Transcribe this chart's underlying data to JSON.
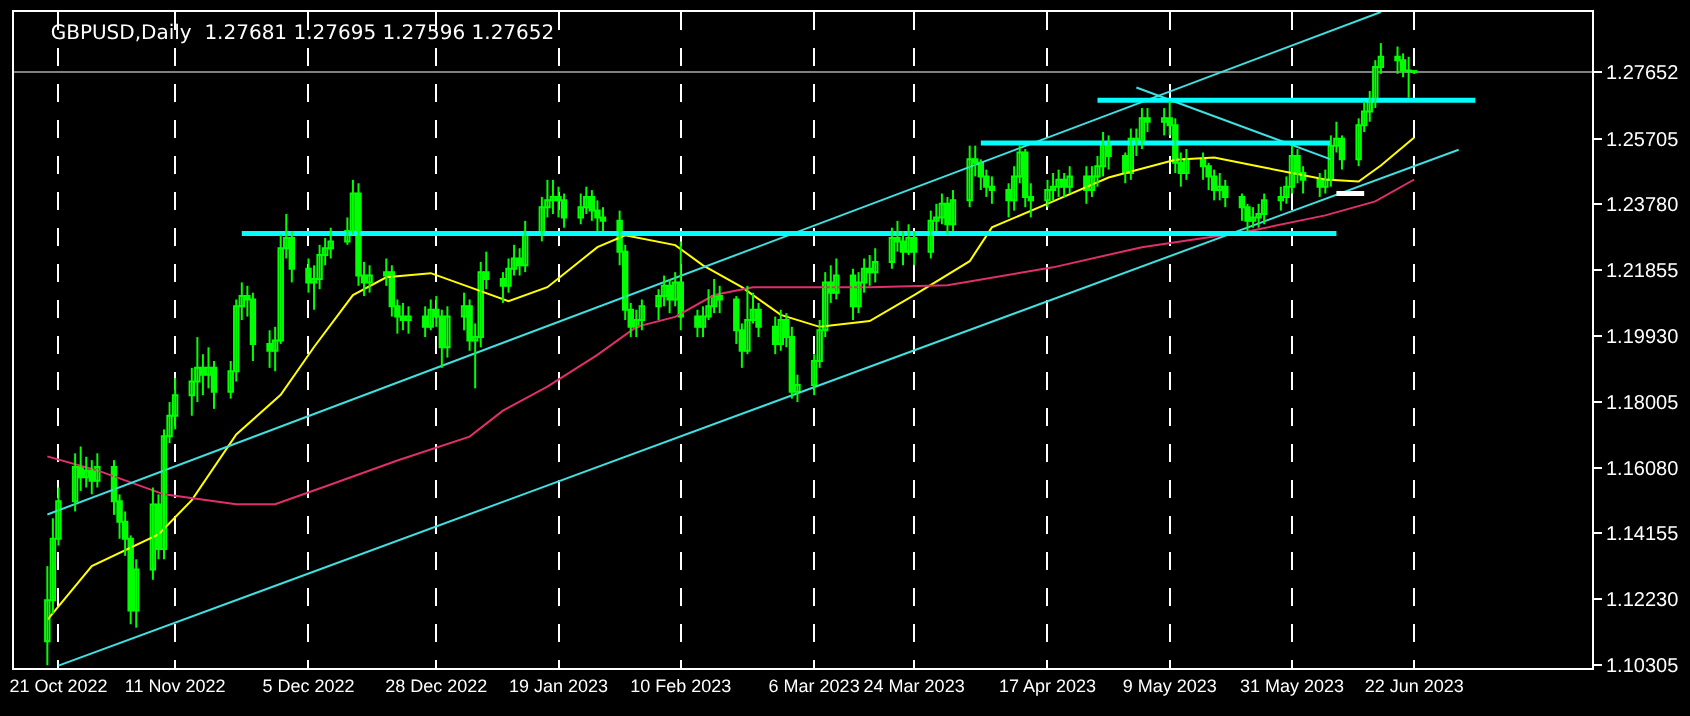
{
  "chart_data": {
    "type": "candlestick",
    "title": "GBPUSD,Daily  1.27681 1.27695 1.27596 1.27652",
    "xlim": [
      "2022-10-13",
      "2023-07-24"
    ],
    "xticks": [
      {
        "value": "2022-10-21",
        "label": "21 Oct 2022"
      },
      {
        "value": "2022-11-11",
        "label": "11 Nov 2022"
      },
      {
        "value": "2022-12-05",
        "label": "5 Dec 2022"
      },
      {
        "value": "2022-12-28",
        "label": "28 Dec 2022"
      },
      {
        "value": "2023-01-19",
        "label": "19 Jan 2023"
      },
      {
        "value": "2023-02-10",
        "label": "10 Feb 2023"
      },
      {
        "value": "2023-03-06",
        "label": "6 Mar 2023"
      },
      {
        "value": "2023-03-24",
        "label": "24 Mar 2023"
      },
      {
        "value": "2023-04-17",
        "label": "17 Apr 2023"
      },
      {
        "value": "2023-05-09",
        "label": "9 May 2023"
      },
      {
        "value": "2023-05-31",
        "label": "31 May 2023"
      },
      {
        "value": "2023-06-22",
        "label": "22 Jun 2023"
      }
    ],
    "ylim": [
      1.1022,
      1.2941
    ],
    "yticks": [
      {
        "value": 1.10305,
        "label": "1.10305"
      },
      {
        "value": 1.1223,
        "label": "1.12230"
      },
      {
        "value": 1.14155,
        "label": "1.14155"
      },
      {
        "value": 1.1608,
        "label": "1.16080"
      },
      {
        "value": 1.18005,
        "label": "1.18005"
      },
      {
        "value": 1.1993,
        "label": "1.19930"
      },
      {
        "value": 1.21855,
        "label": "1.21855"
      },
      {
        "value": 1.2378,
        "label": "1.23780"
      },
      {
        "value": 1.25705,
        "label": "1.25705"
      },
      {
        "value": 1.27652,
        "label": "1.27652"
      }
    ],
    "grid": "x",
    "ref_lines": [
      {
        "axis": "y",
        "value": 1.27652,
        "color": "#808080"
      }
    ],
    "series": [
      {
        "color": "#00ff00",
        "x": [
          "2022-10-19",
          "2022-10-20",
          "2022-10-21",
          "2022-10-24",
          "2022-10-25",
          "2022-10-26",
          "2022-10-27",
          "2022-10-28",
          "2022-10-31",
          "2022-11-01",
          "2022-11-02",
          "2022-11-03",
          "2022-11-04",
          "2022-11-07",
          "2022-11-08",
          "2022-11-09",
          "2022-11-10",
          "2022-11-11",
          "2022-11-14",
          "2022-11-15",
          "2022-11-16",
          "2022-11-17",
          "2022-11-18",
          "2022-11-21",
          "2022-11-22",
          "2022-11-23",
          "2022-11-24",
          "2022-11-25",
          "2022-11-28",
          "2022-11-29",
          "2022-11-30",
          "2022-12-01",
          "2022-12-02",
          "2022-12-05",
          "2022-12-06",
          "2022-12-07",
          "2022-12-08",
          "2022-12-09",
          "2022-12-12",
          "2022-12-13",
          "2022-12-14",
          "2022-12-15",
          "2022-12-16",
          "2022-12-19",
          "2022-12-20",
          "2022-12-21",
          "2022-12-22",
          "2022-12-23",
          "2022-12-26",
          "2022-12-27",
          "2022-12-28",
          "2022-12-29",
          "2022-12-30",
          "2023-01-02",
          "2023-01-03",
          "2023-01-04",
          "2023-01-05",
          "2023-01-06",
          "2023-01-09",
          "2023-01-10",
          "2023-01-11",
          "2023-01-12",
          "2023-01-13",
          "2023-01-16",
          "2023-01-17",
          "2023-01-18",
          "2023-01-19",
          "2023-01-20",
          "2023-01-23",
          "2023-01-24",
          "2023-01-25",
          "2023-01-26",
          "2023-01-27",
          "2023-01-30",
          "2023-01-31",
          "2023-02-01",
          "2023-02-02",
          "2023-02-03",
          "2023-02-06",
          "2023-02-07",
          "2023-02-08",
          "2023-02-09",
          "2023-02-10",
          "2023-02-13",
          "2023-02-14",
          "2023-02-15",
          "2023-02-16",
          "2023-02-17",
          "2023-02-20",
          "2023-02-21",
          "2023-02-22",
          "2023-02-23",
          "2023-02-24",
          "2023-02-27",
          "2023-02-28",
          "2023-03-01",
          "2023-03-02",
          "2023-03-03",
          "2023-03-06",
          "2023-03-07",
          "2023-03-08",
          "2023-03-09",
          "2023-03-10",
          "2023-03-13",
          "2023-03-14",
          "2023-03-15",
          "2023-03-16",
          "2023-03-17",
          "2023-03-20",
          "2023-03-21",
          "2023-03-22",
          "2023-03-23",
          "2023-03-24",
          "2023-03-27",
          "2023-03-28",
          "2023-03-29",
          "2023-03-30",
          "2023-03-31",
          "2023-04-03",
          "2023-04-04",
          "2023-04-05",
          "2023-04-06",
          "2023-04-07",
          "2023-04-10",
          "2023-04-11",
          "2023-04-12",
          "2023-04-13",
          "2023-04-14",
          "2023-04-17",
          "2023-04-18",
          "2023-04-19",
          "2023-04-20",
          "2023-04-21",
          "2023-04-24",
          "2023-04-25",
          "2023-04-26",
          "2023-04-27",
          "2023-04-28",
          "2023-05-01",
          "2023-05-02",
          "2023-05-03",
          "2023-05-04",
          "2023-05-05",
          "2023-05-08",
          "2023-05-09",
          "2023-05-10",
          "2023-05-11",
          "2023-05-12",
          "2023-05-15",
          "2023-05-16",
          "2023-05-17",
          "2023-05-18",
          "2023-05-19",
          "2023-05-22",
          "2023-05-23",
          "2023-05-24",
          "2023-05-25",
          "2023-05-26",
          "2023-05-29",
          "2023-05-30",
          "2023-05-31",
          "2023-06-01",
          "2023-06-02",
          "2023-06-05",
          "2023-06-06",
          "2023-06-07",
          "2023-06-08",
          "2023-06-09",
          "2023-06-12",
          "2023-06-13",
          "2023-06-14",
          "2023-06-15",
          "2023-06-16",
          "2023-06-19",
          "2023-06-20",
          "2023-06-21",
          "2023-06-22"
        ],
        "ohlc": [
          [
            1.11,
            1.132,
            1.103,
            1.122
          ],
          [
            1.122,
            1.146,
            1.118,
            1.14
          ],
          [
            1.14,
            1.155,
            1.138,
            1.151
          ],
          [
            1.151,
            1.165,
            1.148,
            1.161
          ],
          [
            1.161,
            1.167,
            1.154,
            1.158
          ],
          [
            1.158,
            1.164,
            1.155,
            1.16
          ],
          [
            1.16,
            1.163,
            1.153,
            1.157
          ],
          [
            1.157,
            1.165,
            1.155,
            1.161
          ],
          [
            1.161,
            1.163,
            1.147,
            1.151
          ],
          [
            1.151,
            1.153,
            1.14,
            1.145
          ],
          [
            1.145,
            1.148,
            1.135,
            1.14
          ],
          [
            1.14,
            1.141,
            1.115,
            1.119
          ],
          [
            1.119,
            1.134,
            1.114,
            1.131
          ],
          [
            1.131,
            1.155,
            1.128,
            1.15
          ],
          [
            1.15,
            1.153,
            1.134,
            1.137
          ],
          [
            1.137,
            1.172,
            1.134,
            1.17
          ],
          [
            1.17,
            1.18,
            1.168,
            1.176
          ],
          [
            1.176,
            1.187,
            1.172,
            1.182
          ],
          [
            1.182,
            1.19,
            1.176,
            1.186
          ],
          [
            1.186,
            1.199,
            1.18,
            1.19
          ],
          [
            1.19,
            1.194,
            1.182,
            1.188
          ],
          [
            1.188,
            1.196,
            1.184,
            1.19
          ],
          [
            1.19,
            1.192,
            1.178,
            1.183
          ],
          [
            1.183,
            1.192,
            1.181,
            1.189
          ],
          [
            1.189,
            1.21,
            1.186,
            1.208
          ],
          [
            1.208,
            1.215,
            1.204,
            1.211
          ],
          [
            1.211,
            1.214,
            1.205,
            1.21
          ],
          [
            1.21,
            1.212,
            1.192,
            1.197
          ],
          [
            1.197,
            1.201,
            1.19,
            1.195
          ],
          [
            1.195,
            1.202,
            1.189,
            1.198
          ],
          [
            1.198,
            1.229,
            1.197,
            1.225
          ],
          [
            1.225,
            1.235,
            1.222,
            1.228
          ],
          [
            1.228,
            1.23,
            1.215,
            1.219
          ],
          [
            1.219,
            1.222,
            1.212,
            1.215
          ],
          [
            1.215,
            1.22,
            1.207,
            1.216
          ],
          [
            1.216,
            1.226,
            1.213,
            1.223
          ],
          [
            1.223,
            1.228,
            1.22,
            1.225
          ],
          [
            1.225,
            1.231,
            1.222,
            1.227
          ],
          [
            1.227,
            1.234,
            1.226,
            1.23
          ],
          [
            1.23,
            1.245,
            1.229,
            1.241
          ],
          [
            1.241,
            1.244,
            1.214,
            1.217
          ],
          [
            1.217,
            1.221,
            1.211,
            1.215
          ],
          [
            1.215,
            1.22,
            1.212,
            1.217
          ],
          [
            1.217,
            1.222,
            1.214,
            1.218
          ],
          [
            1.218,
            1.22,
            1.205,
            1.208
          ],
          [
            1.208,
            1.21,
            1.2,
            1.205
          ],
          [
            1.205,
            1.209,
            1.201,
            1.204
          ],
          [
            1.204,
            1.208,
            1.2,
            1.205
          ],
          [
            1.205,
            1.208,
            1.199,
            1.202
          ],
          [
            1.202,
            1.21,
            1.201,
            1.207
          ],
          [
            1.207,
            1.211,
            1.202,
            1.205
          ],
          [
            1.205,
            1.207,
            1.19,
            1.196
          ],
          [
            1.196,
            1.208,
            1.193,
            1.205
          ],
          [
            1.205,
            1.212,
            1.201,
            1.208
          ],
          [
            1.208,
            1.21,
            1.195,
            1.198
          ],
          [
            1.198,
            1.203,
            1.184,
            1.199
          ],
          [
            1.199,
            1.221,
            1.196,
            1.218
          ],
          [
            1.218,
            1.224,
            1.213,
            1.216
          ],
          [
            1.216,
            1.218,
            1.209,
            1.214
          ],
          [
            1.214,
            1.222,
            1.212,
            1.219
          ],
          [
            1.219,
            1.226,
            1.217,
            1.222
          ],
          [
            1.222,
            1.225,
            1.217,
            1.22
          ],
          [
            1.22,
            1.233,
            1.218,
            1.229
          ],
          [
            1.229,
            1.24,
            1.227,
            1.237
          ],
          [
            1.237,
            1.245,
            1.234,
            1.239
          ],
          [
            1.239,
            1.245,
            1.235,
            1.24
          ],
          [
            1.24,
            1.243,
            1.234,
            1.239
          ],
          [
            1.239,
            1.241,
            1.231,
            1.234
          ],
          [
            1.234,
            1.241,
            1.232,
            1.237
          ],
          [
            1.237,
            1.243,
            1.235,
            1.24
          ],
          [
            1.24,
            1.242,
            1.233,
            1.236
          ],
          [
            1.236,
            1.239,
            1.23,
            1.234
          ],
          [
            1.234,
            1.237,
            1.23,
            1.233
          ],
          [
            1.233,
            1.236,
            1.22,
            1.224
          ],
          [
            1.224,
            1.226,
            1.204,
            1.207
          ],
          [
            1.207,
            1.209,
            1.199,
            1.202
          ],
          [
            1.202,
            1.207,
            1.199,
            1.204
          ],
          [
            1.204,
            1.21,
            1.201,
            1.208
          ],
          [
            1.208,
            1.213,
            1.204,
            1.211
          ],
          [
            1.211,
            1.217,
            1.208,
            1.214
          ],
          [
            1.214,
            1.216,
            1.206,
            1.21
          ],
          [
            1.21,
            1.218,
            1.208,
            1.215
          ],
          [
            1.215,
            1.227,
            1.201,
            1.205
          ],
          [
            1.205,
            1.207,
            1.199,
            1.202
          ],
          [
            1.202,
            1.208,
            1.199,
            1.205
          ],
          [
            1.205,
            1.213,
            1.204,
            1.208
          ],
          [
            1.208,
            1.216,
            1.206,
            1.211
          ],
          [
            1.211,
            1.214,
            1.206,
            1.21
          ],
          [
            1.21,
            1.211,
            1.197,
            1.201
          ],
          [
            1.201,
            1.203,
            1.19,
            1.195
          ],
          [
            1.195,
            1.214,
            1.194,
            1.204
          ],
          [
            1.204,
            1.212,
            1.203,
            1.207
          ],
          [
            1.207,
            1.209,
            1.199,
            1.202
          ],
          [
            1.202,
            1.205,
            1.194,
            1.197
          ],
          [
            1.197,
            1.207,
            1.195,
            1.204
          ],
          [
            1.204,
            1.206,
            1.196,
            1.199
          ],
          [
            1.199,
            1.202,
            1.181,
            1.183
          ],
          [
            1.183,
            1.188,
            1.18,
            1.185
          ],
          [
            1.185,
            1.194,
            1.182,
            1.192
          ],
          [
            1.192,
            1.204,
            1.19,
            1.201
          ],
          [
            1.201,
            1.218,
            1.199,
            1.215
          ],
          [
            1.215,
            1.22,
            1.209,
            1.212
          ],
          [
            1.212,
            1.222,
            1.21,
            1.217
          ],
          [
            1.217,
            1.219,
            1.204,
            1.208
          ],
          [
            1.208,
            1.218,
            1.206,
            1.215
          ],
          [
            1.215,
            1.222,
            1.212,
            1.219
          ],
          [
            1.219,
            1.223,
            1.214,
            1.218
          ],
          [
            1.218,
            1.225,
            1.215,
            1.221
          ],
          [
            1.221,
            1.231,
            1.219,
            1.228
          ],
          [
            1.228,
            1.233,
            1.224,
            1.227
          ],
          [
            1.227,
            1.23,
            1.22,
            1.224
          ],
          [
            1.224,
            1.232,
            1.223,
            1.228
          ],
          [
            1.228,
            1.23,
            1.22,
            1.224
          ],
          [
            1.224,
            1.236,
            1.222,
            1.233
          ],
          [
            1.233,
            1.238,
            1.23,
            1.234
          ],
          [
            1.234,
            1.241,
            1.232,
            1.238
          ],
          [
            1.238,
            1.24,
            1.229,
            1.232
          ],
          [
            1.232,
            1.242,
            1.23,
            1.239
          ],
          [
            1.239,
            1.255,
            1.237,
            1.251
          ],
          [
            1.251,
            1.255,
            1.246,
            1.25
          ],
          [
            1.25,
            1.251,
            1.242,
            1.246
          ],
          [
            1.246,
            1.248,
            1.24,
            1.243
          ],
          [
            1.243,
            1.246,
            1.238,
            1.242
          ],
          [
            1.242,
            1.244,
            1.234,
            1.239
          ],
          [
            1.239,
            1.249,
            1.236,
            1.246
          ],
          [
            1.246,
            1.255,
            1.244,
            1.253
          ],
          [
            1.253,
            1.254,
            1.237,
            1.24
          ],
          [
            1.24,
            1.244,
            1.234,
            1.239
          ],
          [
            1.239,
            1.245,
            1.237,
            1.242
          ],
          [
            1.242,
            1.247,
            1.239,
            1.243
          ],
          [
            1.243,
            1.248,
            1.24,
            1.245
          ],
          [
            1.245,
            1.247,
            1.24,
            1.243
          ],
          [
            1.243,
            1.249,
            1.241,
            1.246
          ],
          [
            1.246,
            1.249,
            1.238,
            1.242
          ],
          [
            1.242,
            1.249,
            1.24,
            1.246
          ],
          [
            1.246,
            1.252,
            1.243,
            1.249
          ],
          [
            1.249,
            1.259,
            1.246,
            1.256
          ],
          [
            1.256,
            1.258,
            1.248,
            1.252
          ],
          [
            1.252,
            1.253,
            1.244,
            1.247
          ],
          [
            1.247,
            1.26,
            1.245,
            1.257
          ],
          [
            1.257,
            1.26,
            1.252,
            1.256
          ],
          [
            1.256,
            1.266,
            1.254,
            1.263
          ],
          [
            1.263,
            1.266,
            1.259,
            1.262
          ],
          [
            1.262,
            1.266,
            1.258,
            1.263
          ],
          [
            1.263,
            1.268,
            1.258,
            1.261
          ],
          [
            1.261,
            1.263,
            1.247,
            1.25
          ],
          [
            1.25,
            1.253,
            1.243,
            1.247
          ],
          [
            1.247,
            1.254,
            1.245,
            1.251
          ],
          [
            1.251,
            1.253,
            1.245,
            1.249
          ],
          [
            1.249,
            1.25,
            1.242,
            1.246
          ],
          [
            1.246,
            1.248,
            1.239,
            1.242
          ],
          [
            1.242,
            1.247,
            1.239,
            1.243
          ],
          [
            1.243,
            1.245,
            1.237,
            1.24
          ],
          [
            1.24,
            1.241,
            1.233,
            1.237
          ],
          [
            1.237,
            1.238,
            1.23,
            1.233
          ],
          [
            1.233,
            1.237,
            1.231,
            1.234
          ],
          [
            1.234,
            1.238,
            1.231,
            1.235
          ],
          [
            1.235,
            1.241,
            1.232,
            1.239
          ],
          [
            1.239,
            1.243,
            1.236,
            1.24
          ],
          [
            1.24,
            1.246,
            1.238,
            1.243
          ],
          [
            1.243,
            1.255,
            1.241,
            1.252
          ],
          [
            1.252,
            1.254,
            1.244,
            1.247
          ],
          [
            1.247,
            1.249,
            1.241,
            1.245
          ],
          [
            1.245,
            1.247,
            1.24,
            1.243
          ],
          [
            1.243,
            1.248,
            1.241,
            1.245
          ],
          [
            1.245,
            1.258,
            1.243,
            1.255
          ],
          [
            1.255,
            1.262,
            1.253,
            1.257
          ],
          [
            1.257,
            1.258,
            1.248,
            1.251
          ],
          [
            1.251,
            1.263,
            1.249,
            1.261
          ],
          [
            1.261,
            1.268,
            1.259,
            1.265
          ],
          [
            1.265,
            1.271,
            1.262,
            1.268
          ],
          [
            1.268,
            1.28,
            1.266,
            1.278
          ],
          [
            1.278,
            1.285,
            1.276,
            1.281
          ],
          [
            1.281,
            1.284,
            1.276,
            1.28
          ],
          [
            1.28,
            1.282,
            1.275,
            1.277
          ],
          [
            1.277,
            1.281,
            1.269,
            1.2768
          ],
          [
            1.27681,
            1.27695,
            1.27596,
            1.27652
          ]
        ]
      },
      {
        "type": "line",
        "color": "#ffff00",
        "x": [
          "2022-10-19",
          "2022-10-27",
          "2022-11-08",
          "2022-11-14",
          "2022-11-22",
          "2022-11-30",
          "2022-12-06",
          "2022-12-13",
          "2022-12-19",
          "2022-12-27",
          "2023-01-03",
          "2023-01-10",
          "2023-01-17",
          "2023-01-26",
          "2023-01-31",
          "2023-02-09",
          "2023-02-14",
          "2023-02-21",
          "2023-02-28",
          "2023-03-07",
          "2023-03-16",
          "2023-03-24",
          "2023-04-03",
          "2023-04-07",
          "2023-04-18",
          "2023-04-28",
          "2023-05-10",
          "2023-05-17",
          "2023-05-26",
          "2023-06-06",
          "2023-06-12",
          "2023-06-16",
          "2023-06-22"
        ],
        "values": [
          1.1163,
          1.132,
          1.1413,
          1.1513,
          1.1705,
          1.1821,
          1.1961,
          1.2113,
          1.2165,
          1.2177,
          1.2136,
          1.2095,
          1.2136,
          1.2253,
          1.2288,
          1.2259,
          1.22,
          1.2136,
          1.2055,
          1.202,
          1.2037,
          1.2113,
          1.2212,
          1.2311,
          1.2387,
          1.2457,
          1.2509,
          1.2515,
          1.2486,
          1.2451,
          1.2445,
          1.2492,
          1.2574
        ]
      },
      {
        "type": "line",
        "color": "#e0306a",
        "x": [
          "2022-10-19",
          "2022-10-28",
          "2022-11-09",
          "2022-11-22",
          "2022-11-29",
          "2022-12-08",
          "2022-12-21",
          "2023-01-03",
          "2023-01-09",
          "2023-01-17",
          "2023-01-26",
          "2023-02-02",
          "2023-02-09",
          "2023-02-16",
          "2023-02-23",
          "2023-03-16",
          "2023-03-30",
          "2023-04-18",
          "2023-05-04",
          "2023-05-23",
          "2023-06-06",
          "2023-06-15",
          "2023-06-22"
        ],
        "values": [
          1.1641,
          1.16,
          1.153,
          1.1501,
          1.1501,
          1.1553,
          1.1629,
          1.1699,
          1.1775,
          1.1845,
          1.1938,
          1.202,
          1.2049,
          1.2113,
          1.2136,
          1.2136,
          1.2142,
          1.2194,
          1.2253,
          1.2299,
          1.2346,
          1.2387,
          1.2451
        ]
      },
      {
        "type": "line",
        "color": "#40e0e0",
        "x": [
          "2022-10-19",
          "2023-06-16"
        ],
        "values": [
          1.1471,
          1.2941
        ]
      },
      {
        "type": "line",
        "color": "#40e0e0",
        "x": [
          "2022-10-21",
          "2023-06-30"
        ],
        "values": [
          1.1029,
          1.2538
        ]
      },
      {
        "type": "line",
        "color": "#40e0e0",
        "x": [
          "2023-05-03",
          "2023-06-07"
        ],
        "values": [
          1.272,
          1.251
        ]
      },
      {
        "type": "line",
        "color": "#00ffff",
        "x": [
          "2022-11-23",
          "2023-06-08"
        ],
        "values": [
          1.2293,
          1.2293
        ]
      },
      {
        "type": "line",
        "color": "#00ffff",
        "x": [
          "2023-04-05",
          "2023-06-07"
        ],
        "values": [
          1.2558,
          1.2558
        ]
      },
      {
        "type": "line",
        "color": "#00ffff",
        "x": [
          "2023-04-26",
          "2023-07-03"
        ],
        "values": [
          1.2683,
          1.2683
        ]
      },
      {
        "type": "line",
        "color": "#ffffff",
        "x": [
          "2023-06-08",
          "2023-06-13"
        ],
        "values": [
          1.241,
          1.241
        ]
      }
    ]
  }
}
